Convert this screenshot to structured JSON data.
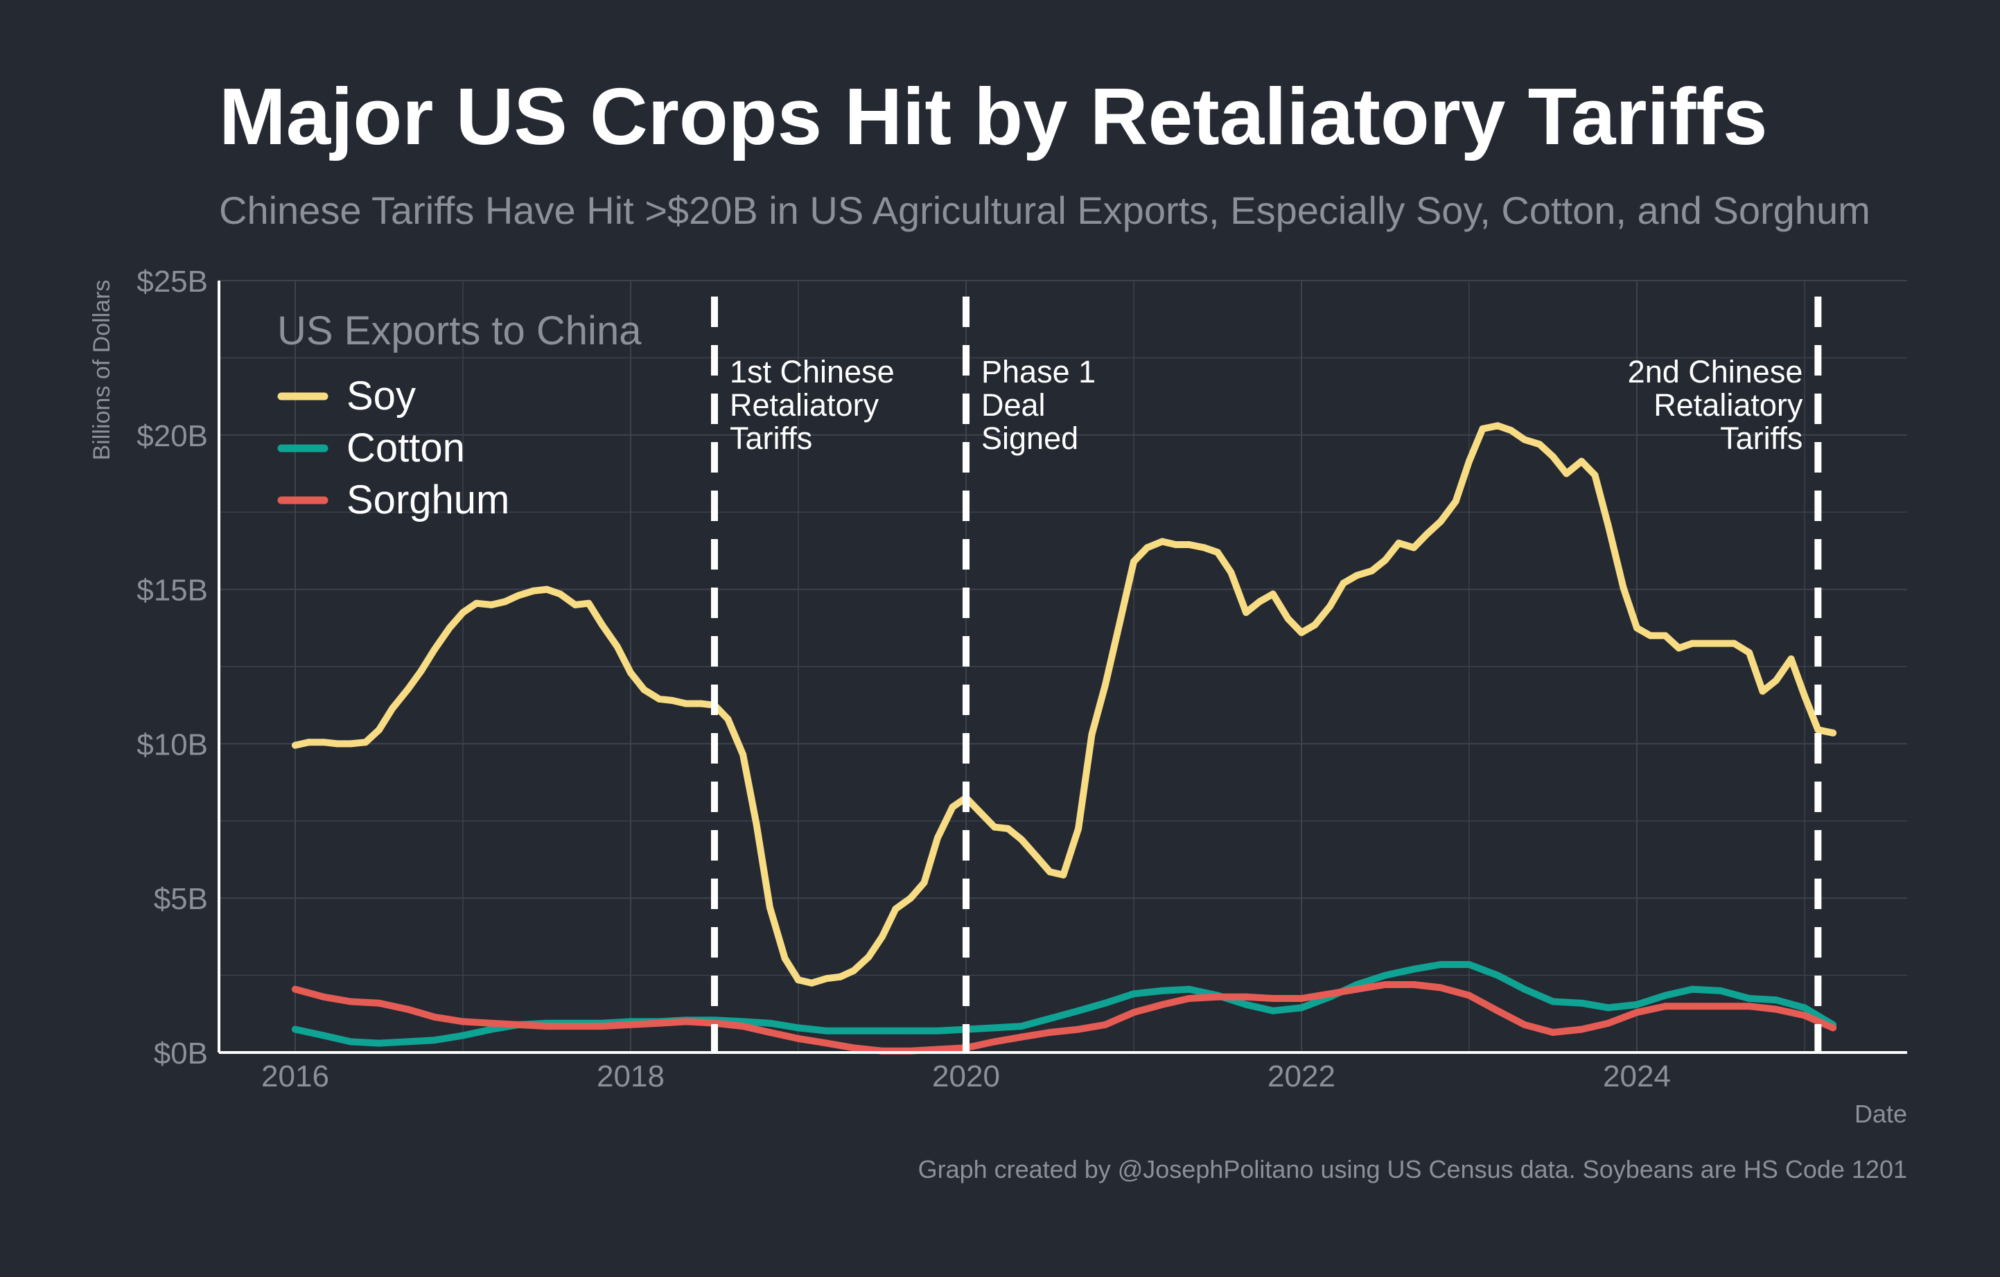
{
  "chart_data": {
    "type": "line",
    "title": "Major US Crops Hit by Retaliatory Tariffs",
    "subtitle": "Chinese Tariffs Have Hit >$20B in US Agricultural Exports, Especially Soy, Cotton, and Sorghum",
    "ylabel": "Billions of Dollars",
    "xlabel": "Date",
    "caption": "Graph created by @JosephPolitano using US Census data. Soybeans are HS Code 1201",
    "legend_title": "US Exports to China",
    "legend_position": "top-left",
    "grid": true,
    "xlim": [
      2015.55,
      2025.6
    ],
    "ylim": [
      0,
      25
    ],
    "x_ticks": [
      2016,
      2018,
      2020,
      2022,
      2024
    ],
    "x_tick_labels": [
      "2016",
      "2018",
      "2020",
      "2022",
      "2024"
    ],
    "y_ticks": [
      0,
      5,
      10,
      15,
      20,
      25
    ],
    "y_tick_labels": [
      "$0B",
      "$5B",
      "$10B",
      "$15B",
      "$20B",
      "$25B"
    ],
    "colors": {
      "background": "#252932",
      "grid": "#3d424c",
      "axis": "#ffffff",
      "title": "#ffffff",
      "muted_text": "#8b9099",
      "annotation": "#ffffff"
    },
    "annotations": [
      {
        "x": 2018.5,
        "lines": [
          "1st Chinese",
          "Retaliatory",
          "Tariffs"
        ],
        "text_side": "right"
      },
      {
        "x": 2020.0,
        "lines": [
          "Phase 1",
          "Deal",
          "Signed"
        ],
        "text_side": "right"
      },
      {
        "x": 2025.08,
        "lines": [
          "2nd Chinese",
          "Retaliatory",
          "Tariffs"
        ],
        "text_side": "left"
      }
    ],
    "series": [
      {
        "name": "Soy",
        "color": "#f7dc84",
        "points": [
          [
            2016.0,
            9.95
          ],
          [
            2016.08,
            10.05
          ],
          [
            2016.17,
            10.05
          ],
          [
            2016.25,
            10.0
          ],
          [
            2016.33,
            10.0
          ],
          [
            2016.42,
            10.05
          ],
          [
            2016.5,
            10.45
          ],
          [
            2016.58,
            11.15
          ],
          [
            2016.67,
            11.75
          ],
          [
            2016.75,
            12.35
          ],
          [
            2016.83,
            13.05
          ],
          [
            2016.92,
            13.75
          ],
          [
            2017.0,
            14.25
          ],
          [
            2017.08,
            14.55
          ],
          [
            2017.17,
            14.5
          ],
          [
            2017.25,
            14.6
          ],
          [
            2017.33,
            14.8
          ],
          [
            2017.42,
            14.95
          ],
          [
            2017.5,
            15.0
          ],
          [
            2017.58,
            14.85
          ],
          [
            2017.67,
            14.5
          ],
          [
            2017.75,
            14.55
          ],
          [
            2017.83,
            13.85
          ],
          [
            2017.92,
            13.15
          ],
          [
            2018.0,
            12.3
          ],
          [
            2018.08,
            11.75
          ],
          [
            2018.17,
            11.45
          ],
          [
            2018.25,
            11.4
          ],
          [
            2018.33,
            11.3
          ],
          [
            2018.42,
            11.3
          ],
          [
            2018.5,
            11.25
          ],
          [
            2018.58,
            10.8
          ],
          [
            2018.67,
            9.65
          ],
          [
            2018.75,
            7.4
          ],
          [
            2018.83,
            4.7
          ],
          [
            2018.92,
            3.05
          ],
          [
            2019.0,
            2.35
          ],
          [
            2019.08,
            2.25
          ],
          [
            2019.17,
            2.4
          ],
          [
            2019.25,
            2.45
          ],
          [
            2019.33,
            2.65
          ],
          [
            2019.42,
            3.1
          ],
          [
            2019.5,
            3.75
          ],
          [
            2019.58,
            4.65
          ],
          [
            2019.67,
            5.0
          ],
          [
            2019.75,
            5.5
          ],
          [
            2019.83,
            6.95
          ],
          [
            2019.92,
            7.95
          ],
          [
            2020.0,
            8.25
          ],
          [
            2020.08,
            7.8
          ],
          [
            2020.17,
            7.3
          ],
          [
            2020.25,
            7.25
          ],
          [
            2020.33,
            6.9
          ],
          [
            2020.42,
            6.35
          ],
          [
            2020.5,
            5.85
          ],
          [
            2020.58,
            5.75
          ],
          [
            2020.67,
            7.25
          ],
          [
            2020.75,
            10.3
          ],
          [
            2020.83,
            11.9
          ],
          [
            2020.92,
            14.0
          ],
          [
            2021.0,
            15.9
          ],
          [
            2021.08,
            16.35
          ],
          [
            2021.17,
            16.55
          ],
          [
            2021.25,
            16.45
          ],
          [
            2021.33,
            16.45
          ],
          [
            2021.42,
            16.35
          ],
          [
            2021.5,
            16.2
          ],
          [
            2021.58,
            15.55
          ],
          [
            2021.67,
            14.25
          ],
          [
            2021.75,
            14.6
          ],
          [
            2021.83,
            14.85
          ],
          [
            2021.92,
            14.05
          ],
          [
            2022.0,
            13.6
          ],
          [
            2022.08,
            13.85
          ],
          [
            2022.17,
            14.45
          ],
          [
            2022.25,
            15.2
          ],
          [
            2022.33,
            15.45
          ],
          [
            2022.42,
            15.6
          ],
          [
            2022.5,
            15.95
          ],
          [
            2022.58,
            16.5
          ],
          [
            2022.67,
            16.35
          ],
          [
            2022.75,
            16.8
          ],
          [
            2022.83,
            17.2
          ],
          [
            2022.92,
            17.85
          ],
          [
            2023.0,
            19.15
          ],
          [
            2023.08,
            20.2
          ],
          [
            2023.17,
            20.3
          ],
          [
            2023.25,
            20.15
          ],
          [
            2023.33,
            19.85
          ],
          [
            2023.42,
            19.7
          ],
          [
            2023.5,
            19.3
          ],
          [
            2023.58,
            18.75
          ],
          [
            2023.67,
            19.15
          ],
          [
            2023.75,
            18.7
          ],
          [
            2023.83,
            17.05
          ],
          [
            2023.92,
            15.05
          ],
          [
            2024.0,
            13.75
          ],
          [
            2024.08,
            13.5
          ],
          [
            2024.17,
            13.5
          ],
          [
            2024.25,
            13.1
          ],
          [
            2024.33,
            13.25
          ],
          [
            2024.42,
            13.25
          ],
          [
            2024.5,
            13.25
          ],
          [
            2024.58,
            13.25
          ],
          [
            2024.67,
            12.95
          ],
          [
            2024.75,
            11.7
          ],
          [
            2024.83,
            12.05
          ],
          [
            2024.92,
            12.75
          ],
          [
            2025.0,
            11.55
          ],
          [
            2025.08,
            10.45
          ],
          [
            2025.17,
            10.35
          ]
        ]
      },
      {
        "name": "Cotton",
        "color": "#0fa394",
        "points": [
          [
            2016.0,
            0.75
          ],
          [
            2016.17,
            0.55
          ],
          [
            2016.33,
            0.35
          ],
          [
            2016.5,
            0.3
          ],
          [
            2016.67,
            0.35
          ],
          [
            2016.83,
            0.4
          ],
          [
            2017.0,
            0.55
          ],
          [
            2017.17,
            0.75
          ],
          [
            2017.33,
            0.9
          ],
          [
            2017.5,
            0.95
          ],
          [
            2017.67,
            0.95
          ],
          [
            2017.83,
            0.95
          ],
          [
            2018.0,
            1.0
          ],
          [
            2018.17,
            1.0
          ],
          [
            2018.33,
            1.05
          ],
          [
            2018.5,
            1.05
          ],
          [
            2018.67,
            1.0
          ],
          [
            2018.83,
            0.95
          ],
          [
            2019.0,
            0.8
          ],
          [
            2019.17,
            0.7
          ],
          [
            2019.33,
            0.7
          ],
          [
            2019.5,
            0.7
          ],
          [
            2019.67,
            0.7
          ],
          [
            2019.83,
            0.7
          ],
          [
            2020.0,
            0.75
          ],
          [
            2020.17,
            0.8
          ],
          [
            2020.33,
            0.85
          ],
          [
            2020.5,
            1.1
          ],
          [
            2020.67,
            1.35
          ],
          [
            2020.83,
            1.6
          ],
          [
            2021.0,
            1.9
          ],
          [
            2021.17,
            2.0
          ],
          [
            2021.33,
            2.05
          ],
          [
            2021.5,
            1.85
          ],
          [
            2021.67,
            1.55
          ],
          [
            2021.83,
            1.35
          ],
          [
            2022.0,
            1.45
          ],
          [
            2022.17,
            1.8
          ],
          [
            2022.33,
            2.2
          ],
          [
            2022.5,
            2.5
          ],
          [
            2022.67,
            2.7
          ],
          [
            2022.83,
            2.85
          ],
          [
            2023.0,
            2.85
          ],
          [
            2023.17,
            2.5
          ],
          [
            2023.33,
            2.05
          ],
          [
            2023.5,
            1.65
          ],
          [
            2023.67,
            1.6
          ],
          [
            2023.83,
            1.45
          ],
          [
            2024.0,
            1.55
          ],
          [
            2024.17,
            1.85
          ],
          [
            2024.33,
            2.05
          ],
          [
            2024.5,
            2.0
          ],
          [
            2024.67,
            1.75
          ],
          [
            2024.83,
            1.7
          ],
          [
            2025.0,
            1.45
          ],
          [
            2025.17,
            0.9
          ]
        ]
      },
      {
        "name": "Sorghum",
        "color": "#e45c54",
        "points": [
          [
            2016.0,
            2.05
          ],
          [
            2016.17,
            1.8
          ],
          [
            2016.33,
            1.65
          ],
          [
            2016.5,
            1.6
          ],
          [
            2016.67,
            1.4
          ],
          [
            2016.83,
            1.15
          ],
          [
            2017.0,
            1.0
          ],
          [
            2017.17,
            0.95
          ],
          [
            2017.33,
            0.9
          ],
          [
            2017.5,
            0.85
          ],
          [
            2017.67,
            0.85
          ],
          [
            2017.83,
            0.85
          ],
          [
            2018.0,
            0.9
          ],
          [
            2018.17,
            0.95
          ],
          [
            2018.33,
            1.0
          ],
          [
            2018.5,
            0.95
          ],
          [
            2018.67,
            0.85
          ],
          [
            2018.83,
            0.65
          ],
          [
            2019.0,
            0.45
          ],
          [
            2019.17,
            0.3
          ],
          [
            2019.33,
            0.15
          ],
          [
            2019.5,
            0.05
          ],
          [
            2019.67,
            0.05
          ],
          [
            2019.83,
            0.1
          ],
          [
            2020.0,
            0.15
          ],
          [
            2020.17,
            0.35
          ],
          [
            2020.33,
            0.5
          ],
          [
            2020.5,
            0.65
          ],
          [
            2020.67,
            0.75
          ],
          [
            2020.83,
            0.9
          ],
          [
            2021.0,
            1.3
          ],
          [
            2021.17,
            1.55
          ],
          [
            2021.33,
            1.75
          ],
          [
            2021.5,
            1.8
          ],
          [
            2021.67,
            1.8
          ],
          [
            2021.83,
            1.75
          ],
          [
            2022.0,
            1.75
          ],
          [
            2022.17,
            1.9
          ],
          [
            2022.33,
            2.05
          ],
          [
            2022.5,
            2.2
          ],
          [
            2022.67,
            2.2
          ],
          [
            2022.83,
            2.1
          ],
          [
            2023.0,
            1.85
          ],
          [
            2023.17,
            1.35
          ],
          [
            2023.33,
            0.9
          ],
          [
            2023.5,
            0.65
          ],
          [
            2023.67,
            0.75
          ],
          [
            2023.83,
            0.95
          ],
          [
            2024.0,
            1.3
          ],
          [
            2024.17,
            1.5
          ],
          [
            2024.33,
            1.5
          ],
          [
            2024.5,
            1.5
          ],
          [
            2024.67,
            1.5
          ],
          [
            2024.83,
            1.4
          ],
          [
            2025.0,
            1.2
          ],
          [
            2025.17,
            0.8
          ]
        ]
      }
    ]
  }
}
